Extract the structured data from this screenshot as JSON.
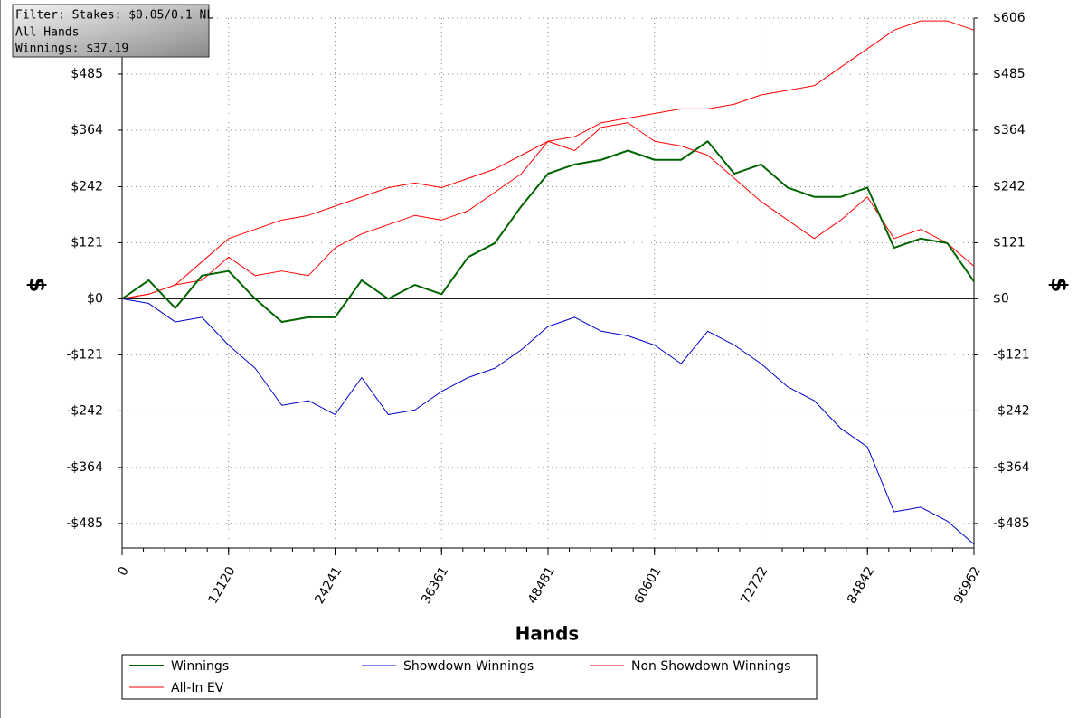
{
  "chart_data": {
    "type": "line",
    "annotations": [
      "Filter: Stakes: $0.05/0.1 NL",
      "All Hands",
      "Winnings: $37.19"
    ],
    "x_label": "Hands",
    "y_label": "$",
    "y2_label": "$",
    "x": [
      0,
      3030,
      6060,
      9090,
      12120,
      15150,
      18180,
      21210,
      24240,
      27270,
      30300,
      33330,
      36360,
      39390,
      42420,
      45450,
      48480,
      51510,
      54540,
      57570,
      60600,
      63630,
      66660,
      69690,
      72720,
      75750,
      78780,
      81810,
      84840,
      87870,
      90900,
      93930,
      96962
    ],
    "xlim": [
      0,
      96962
    ],
    "xticks": [
      0,
      12120,
      24241,
      36361,
      48481,
      60601,
      72722,
      84842,
      96962
    ],
    "ylim": [
      -538,
      606
    ],
    "yticks": [
      {
        "value": 606,
        "label": "$606"
      },
      {
        "value": 485,
        "label": "$485"
      },
      {
        "value": 364,
        "label": "$364"
      },
      {
        "value": 242,
        "label": "$242"
      },
      {
        "value": 121,
        "label": "$121"
      },
      {
        "value": 0,
        "label": "$0"
      },
      {
        "value": -121,
        "label": "-$121"
      },
      {
        "value": -242,
        "label": "-$242"
      },
      {
        "value": -364,
        "label": "-$364"
      },
      {
        "value": -485,
        "label": "-$485"
      }
    ],
    "y2lim": [
      -538,
      606
    ],
    "y2ticks": [
      {
        "value": 606,
        "label": "$606"
      },
      {
        "value": 485,
        "label": "$485"
      },
      {
        "value": 364,
        "label": "$364"
      },
      {
        "value": 242,
        "label": "$242"
      },
      {
        "value": 121,
        "label": "$121"
      },
      {
        "value": 0,
        "label": "$0"
      },
      {
        "value": -121,
        "label": "-$121"
      },
      {
        "value": -242,
        "label": "-$242"
      },
      {
        "value": -364,
        "label": "-$364"
      },
      {
        "value": -485,
        "label": "-$485"
      }
    ],
    "grid": true,
    "series": [
      {
        "name": "Winnings",
        "color": "#006400",
        "width": 2,
        "values": [
          0,
          40,
          -20,
          50,
          60,
          0,
          -50,
          -40,
          -40,
          40,
          0,
          30,
          10,
          90,
          120,
          200,
          270,
          290,
          300,
          320,
          300,
          300,
          340,
          270,
          290,
          240,
          220,
          220,
          240,
          110,
          130,
          120,
          37.19
        ]
      },
      {
        "name": "Showdown Winnings",
        "color": "#0000cc",
        "width": 1,
        "values": [
          0,
          -10,
          -50,
          -40,
          -100,
          -150,
          -230,
          -220,
          -250,
          -170,
          -250,
          -240,
          -200,
          -170,
          -150,
          -110,
          -60,
          -40,
          -70,
          -80,
          -100,
          -140,
          -70,
          -100,
          -140,
          -190,
          -220,
          -280,
          -320,
          -460,
          -450,
          -480,
          -530
        ]
      },
      {
        "name": "Non Showdown Winnings",
        "color": "#ff0000",
        "width": 1,
        "values": [
          0,
          10,
          30,
          40,
          90,
          50,
          60,
          50,
          110,
          140,
          160,
          180,
          170,
          190,
          230,
          270,
          340,
          320,
          370,
          380,
          340,
          330,
          310,
          260,
          210,
          170,
          130,
          170,
          220,
          130,
          150,
          120,
          70
        ]
      },
      {
        "name": "All-In EV",
        "color": "#ff0000",
        "width": 1,
        "values": [
          0,
          10,
          30,
          80,
          130,
          150,
          170,
          180,
          200,
          220,
          240,
          250,
          240,
          260,
          280,
          310,
          340,
          350,
          380,
          390,
          400,
          410,
          410,
          420,
          440,
          450,
          460,
          500,
          540,
          580,
          600,
          600,
          580
        ]
      }
    ]
  }
}
